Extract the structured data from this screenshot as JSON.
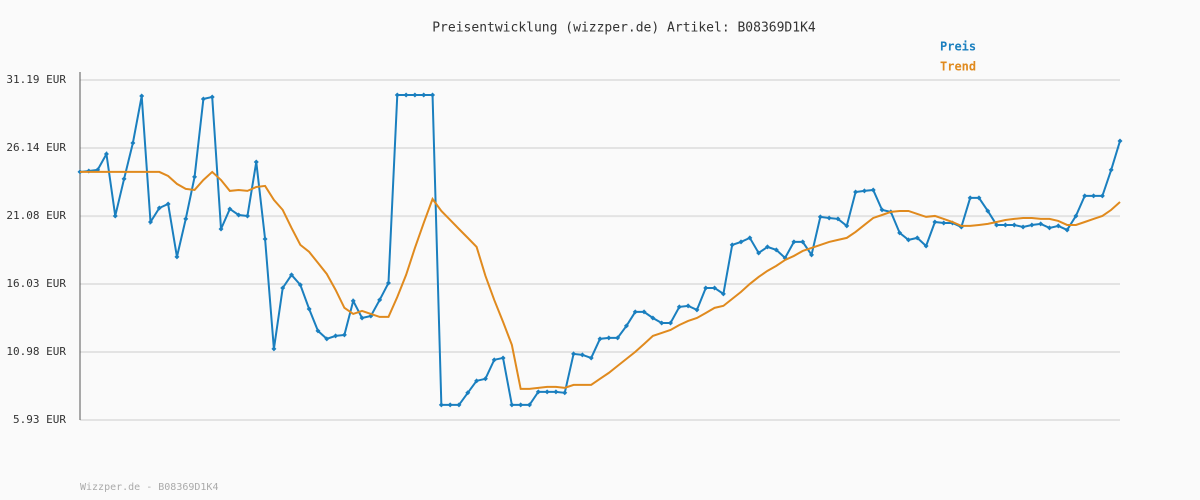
{
  "chart_data": {
    "type": "line",
    "title": "Preisentwicklung (wizzper.de) Artikel: B08369D1K4",
    "footer": "Wizzper.de - B08369D1K4",
    "ylim": [
      5.93,
      31.19
    ],
    "yticks": [
      {
        "value": 5.93,
        "label": "5.93 EUR"
      },
      {
        "value": 10.98,
        "label": "10.98 EUR"
      },
      {
        "value": 16.03,
        "label": "16.03 EUR"
      },
      {
        "value": 21.08,
        "label": "21.08 EUR"
      },
      {
        "value": 26.14,
        "label": "26.14 EUR"
      },
      {
        "value": 31.19,
        "label": "31.19 EUR"
      }
    ],
    "grid": true,
    "legend": "top-right",
    "series": [
      {
        "name": "Preis",
        "color": "#1a7fbf",
        "markers": true,
        "values": [
          24.36,
          24.43,
          24.51,
          25.69,
          21.09,
          23.84,
          26.51,
          30.0,
          20.64,
          21.68,
          21.98,
          18.05,
          20.87,
          23.99,
          29.78,
          29.93,
          20.12,
          21.61,
          21.16,
          21.09,
          25.1,
          19.38,
          11.21,
          15.74,
          16.71,
          15.97,
          14.18,
          12.55,
          11.96,
          12.18,
          12.25,
          14.78,
          13.51,
          13.66,
          14.85,
          16.11,
          30.08,
          30.08,
          30.08,
          30.08,
          30.08,
          7.05,
          7.05,
          7.05,
          7.95,
          8.84,
          8.99,
          10.4,
          10.54,
          7.05,
          7.05,
          7.05,
          8.02,
          8.02,
          8.02,
          7.95,
          10.84,
          10.77,
          10.54,
          11.96,
          12.03,
          12.03,
          12.92,
          13.96,
          13.96,
          13.51,
          13.14,
          13.14,
          14.33,
          14.41,
          14.11,
          15.74,
          15.74,
          15.3,
          18.94,
          19.16,
          19.46,
          18.34,
          18.79,
          18.57,
          17.97,
          19.16,
          19.16,
          18.2,
          21.02,
          20.94,
          20.87,
          20.35,
          22.87,
          22.95,
          23.02,
          21.54,
          21.39,
          19.83,
          19.31,
          19.46,
          18.86,
          20.64,
          20.57,
          20.57,
          20.27,
          22.43,
          22.43,
          21.46,
          20.42,
          20.42,
          20.42,
          20.27,
          20.42,
          20.5,
          20.2,
          20.35,
          20.05,
          21.09,
          22.58,
          22.58,
          22.58,
          24.51,
          26.66
        ]
      },
      {
        "name": "Trend",
        "color": "#e08a1e",
        "markers": false,
        "values": [
          24.36,
          24.36,
          24.36,
          24.36,
          24.36,
          24.36,
          24.36,
          24.36,
          24.36,
          24.36,
          24.06,
          23.47,
          23.1,
          23.02,
          23.76,
          24.36,
          23.76,
          22.95,
          23.02,
          22.95,
          23.24,
          23.32,
          22.28,
          21.54,
          20.2,
          18.94,
          18.42,
          17.6,
          16.78,
          15.6,
          14.26,
          13.81,
          14.03,
          13.81,
          13.59,
          13.59,
          15.07,
          16.71,
          18.71,
          20.57,
          22.35,
          21.46,
          20.79,
          20.12,
          19.46,
          18.79,
          16.64,
          14.85,
          13.22,
          11.51,
          8.24,
          8.24,
          8.32,
          8.39,
          8.39,
          8.32,
          8.54,
          8.54,
          8.54,
          8.99,
          9.43,
          9.95,
          10.47,
          10.99,
          11.58,
          12.18,
          12.4,
          12.62,
          12.99,
          13.29,
          13.51,
          13.88,
          14.26,
          14.41,
          14.93,
          15.45,
          16.04,
          16.56,
          17.01,
          17.38,
          17.82,
          18.12,
          18.49,
          18.71,
          18.94,
          19.16,
          19.31,
          19.46,
          19.9,
          20.42,
          20.94,
          21.16,
          21.39,
          21.46,
          21.46,
          21.24,
          21.02,
          21.09,
          20.87,
          20.64,
          20.35,
          20.35,
          20.42,
          20.5,
          20.64,
          20.79,
          20.87,
          20.94,
          20.94,
          20.87,
          20.87,
          20.72,
          20.42,
          20.42,
          20.64,
          20.87,
          21.09,
          21.54,
          22.13
        ]
      }
    ]
  }
}
